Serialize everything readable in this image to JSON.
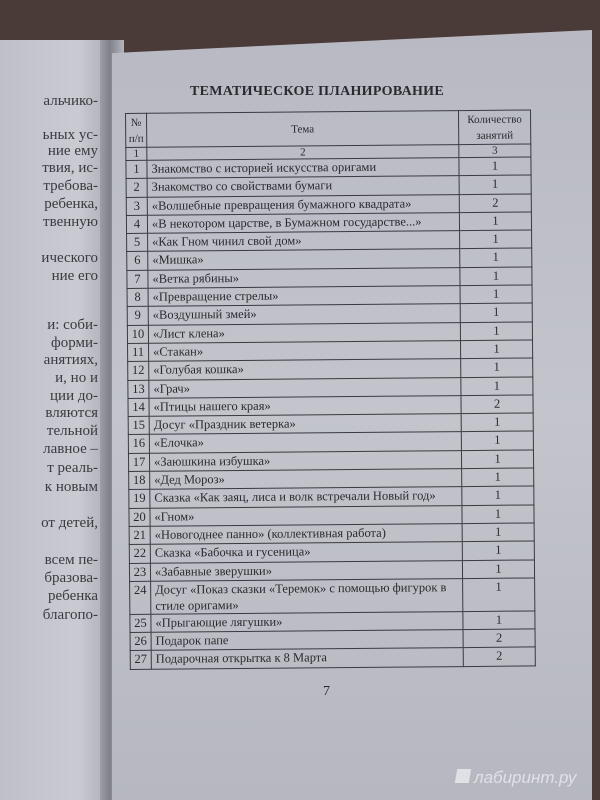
{
  "left_page": {
    "lines": [
      "альчико-",
      "ьных ус-",
      "ние ему",
      "твия, ис-",
      "требова-",
      "ребенка,",
      "твенную",
      "ического",
      "ние его",
      "и: соби-",
      "форми-",
      "анятиях,",
      "и, но и",
      "ции до-",
      "вляются",
      "тельной",
      "лавное –",
      "т реаль-",
      "к новым",
      "от детей,",
      "всем пе-",
      "бразова-",
      "ребенка",
      "благопо-"
    ]
  },
  "title": "ТЕМАТИЧЕСКОЕ ПЛАНИРОВАНИЕ",
  "table": {
    "headers": {
      "num": "№ п/п",
      "topic": "Тема",
      "count": "Количество занятий"
    },
    "column_index": [
      "1",
      "2",
      "3"
    ],
    "rows": [
      {
        "n": "1",
        "topic": "Знакомство с историей искусства оригами",
        "count": "1"
      },
      {
        "n": "2",
        "topic": "Знакомство со свойствами бумаги",
        "count": "1"
      },
      {
        "n": "3",
        "topic": "«Волшебные превращения бумажного квадрата»",
        "count": "2"
      },
      {
        "n": "4",
        "topic": "«В некотором царстве, в Бумажном государстве...»",
        "count": "1"
      },
      {
        "n": "5",
        "topic": "«Как Гном чинил свой дом»",
        "count": "1"
      },
      {
        "n": "6",
        "topic": "«Мишка»",
        "count": "1"
      },
      {
        "n": "7",
        "topic": "«Ветка рябины»",
        "count": "1"
      },
      {
        "n": "8",
        "topic": "«Превращение стрелы»",
        "count": "1"
      },
      {
        "n": "9",
        "topic": "«Воздушный змей»",
        "count": "1"
      },
      {
        "n": "10",
        "topic": "«Лист клена»",
        "count": "1"
      },
      {
        "n": "11",
        "topic": "«Стакан»",
        "count": "1"
      },
      {
        "n": "12",
        "topic": "«Голубая кошка»",
        "count": "1"
      },
      {
        "n": "13",
        "topic": "«Грач»",
        "count": "1"
      },
      {
        "n": "14",
        "topic": "«Птицы нашего края»",
        "count": "2"
      },
      {
        "n": "15",
        "topic": "Досуг «Праздник ветерка»",
        "count": "1"
      },
      {
        "n": "16",
        "topic": "«Елочка»",
        "count": "1"
      },
      {
        "n": "17",
        "topic": "«Заюшкина избушка»",
        "count": "1"
      },
      {
        "n": "18",
        "topic": "«Дед Мороз»",
        "count": "1"
      },
      {
        "n": "19",
        "topic": "Сказка «Как заяц, лиса и волк встречали Новый год»",
        "count": "1"
      },
      {
        "n": "20",
        "topic": "«Гном»",
        "count": "1"
      },
      {
        "n": "21",
        "topic": "«Новогоднее панно» (коллективная работа)",
        "count": "1"
      },
      {
        "n": "22",
        "topic": "Сказка «Бабочка и гусеница»",
        "count": "1"
      },
      {
        "n": "23",
        "topic": "«Забавные зверушки»",
        "count": "1"
      },
      {
        "n": "24",
        "topic": "Досуг «Показ сказки «Теремок» с помощью фигурок в стиле оригами»",
        "count": "1"
      },
      {
        "n": "25",
        "topic": "«Прыгающие лягушки»",
        "count": "1"
      },
      {
        "n": "26",
        "topic": "Подарок папе",
        "count": "2"
      },
      {
        "n": "27",
        "topic": "Подарочная открытка к 8 Марта",
        "count": "2"
      }
    ]
  },
  "page_number": "7",
  "watermark": "лабиринт.ру"
}
